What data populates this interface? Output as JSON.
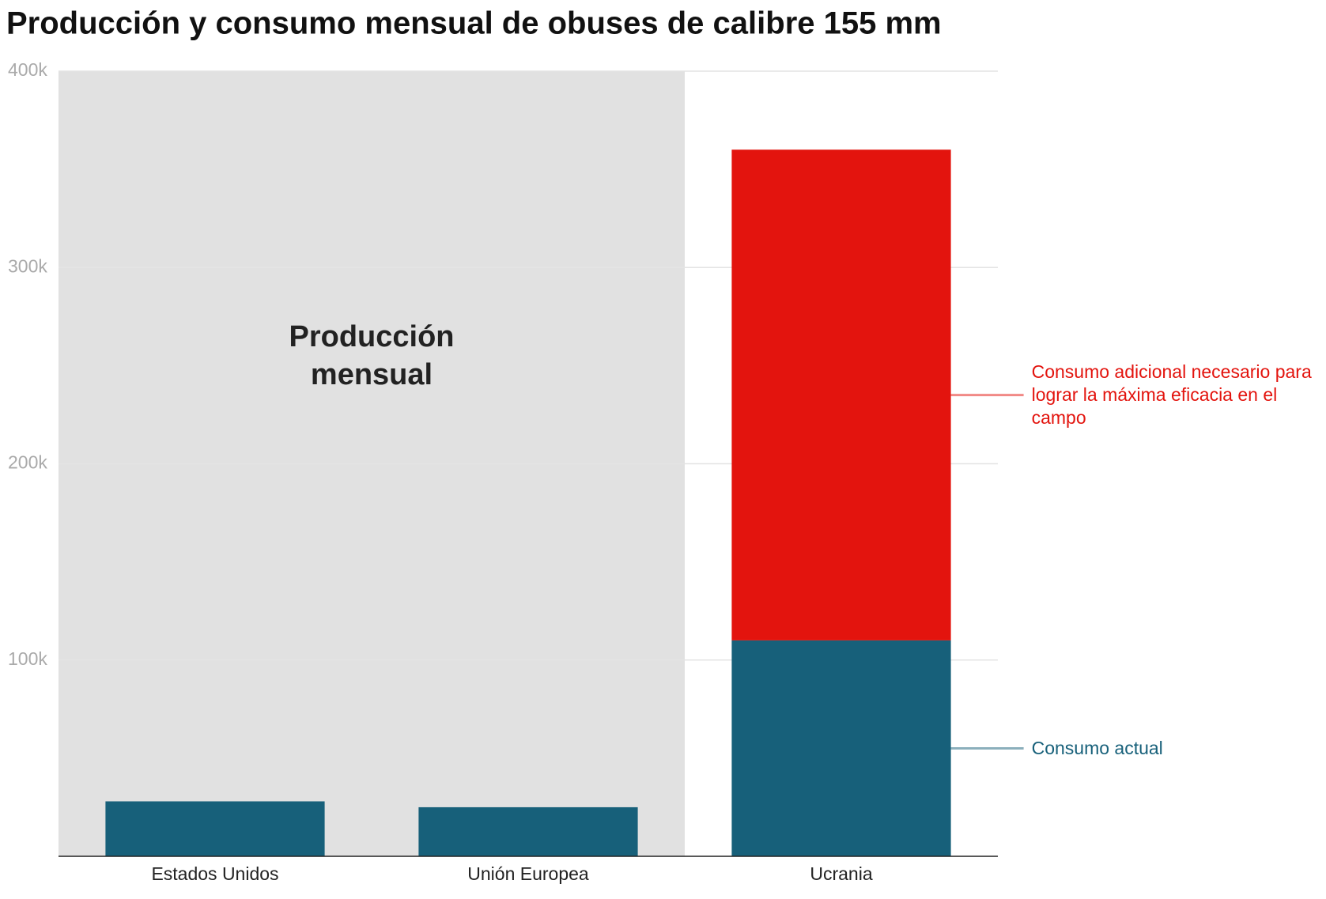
{
  "chart_data": {
    "type": "stacked_bar",
    "title": "Producción y consumo mensual de obuses de calibre 155 mm",
    "shaded_label": "Producción mensual",
    "categories": [
      "Estados Unidos",
      "Unión Europea",
      "Ucrania"
    ],
    "series": [
      {
        "name": "Consumo actual",
        "color": "#17607a",
        "values": [
          28000,
          25000,
          110000
        ]
      },
      {
        "name": "Consumo adicional necesario para lograr la máxima eficacia en el campo",
        "color": "#e3140e",
        "values": [
          null,
          null,
          250000
        ]
      }
    ],
    "ylim": [
      0,
      400000
    ],
    "yticks": [
      {
        "value": 100000,
        "label": "100k"
      },
      {
        "value": 200000,
        "label": "200k"
      },
      {
        "value": 300000,
        "label": "300k"
      },
      {
        "value": 400000,
        "label": "400k"
      }
    ],
    "grid": true
  }
}
